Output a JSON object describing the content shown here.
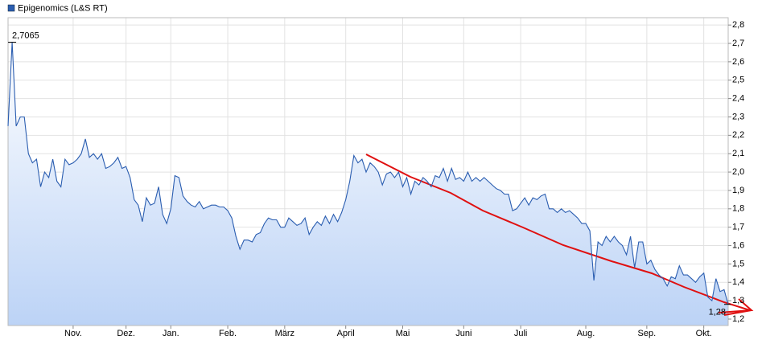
{
  "chart_data": {
    "type": "line",
    "categories": [
      null,
      null,
      null,
      null,
      null,
      null,
      null,
      null,
      null,
      null,
      null,
      null,
      null,
      null,
      null,
      null,
      "Nov.",
      null,
      null,
      null,
      null,
      null,
      null,
      null,
      null,
      null,
      null,
      null,
      null,
      "Dez.",
      null,
      null,
      null,
      null,
      null,
      null,
      null,
      null,
      null,
      null,
      "Jan.",
      null,
      null,
      null,
      null,
      null,
      null,
      null,
      null,
      null,
      null,
      null,
      null,
      null,
      "Feb.",
      null,
      null,
      null,
      null,
      null,
      null,
      null,
      null,
      null,
      null,
      null,
      null,
      null,
      "März",
      null,
      null,
      null,
      null,
      null,
      null,
      null,
      null,
      null,
      null,
      null,
      null,
      null,
      null,
      "April",
      null,
      null,
      null,
      null,
      null,
      null,
      null,
      null,
      null,
      null,
      null,
      null,
      null,
      "Mai",
      null,
      null,
      null,
      null,
      null,
      null,
      null,
      null,
      null,
      null,
      null,
      null,
      null,
      null,
      "Juni",
      null,
      null,
      null,
      null,
      null,
      null,
      null,
      null,
      null,
      null,
      null,
      null,
      null,
      "Juli",
      null,
      null,
      null,
      null,
      null,
      null,
      null,
      null,
      null,
      null,
      null,
      null,
      null,
      null,
      null,
      "Aug.",
      null,
      null,
      null,
      null,
      null,
      null,
      null,
      null,
      null,
      null,
      null,
      null,
      null,
      null,
      "Sep.",
      null,
      null,
      null,
      null,
      null,
      null,
      null,
      null,
      null,
      null,
      null,
      null,
      null,
      "Okt.",
      null,
      null,
      null,
      null,
      null,
      null
    ],
    "series": [
      {
        "name": "Epigenomics (L&S RT)",
        "color": "#2a5db0",
        "values": [
          2.25,
          2.7065,
          2.25,
          2.3,
          2.3,
          2.1,
          2.05,
          2.07,
          1.92,
          2.0,
          1.97,
          2.07,
          1.95,
          1.92,
          2.07,
          2.04,
          2.05,
          2.07,
          2.1,
          2.18,
          2.08,
          2.1,
          2.07,
          2.1,
          2.02,
          2.03,
          2.05,
          2.08,
          2.02,
          2.03,
          1.97,
          1.85,
          1.82,
          1.73,
          1.86,
          1.82,
          1.83,
          1.92,
          1.77,
          1.72,
          1.8,
          1.98,
          1.97,
          1.87,
          1.84,
          1.82,
          1.81,
          1.84,
          1.8,
          1.81,
          1.82,
          1.82,
          1.81,
          1.81,
          1.79,
          1.75,
          1.65,
          1.58,
          1.63,
          1.63,
          1.62,
          1.66,
          1.67,
          1.72,
          1.75,
          1.74,
          1.74,
          1.7,
          1.7,
          1.75,
          1.73,
          1.71,
          1.72,
          1.75,
          1.66,
          1.7,
          1.73,
          1.71,
          1.76,
          1.72,
          1.77,
          1.73,
          1.78,
          1.85,
          1.95,
          2.09,
          2.05,
          2.07,
          2.0,
          2.05,
          2.03,
          2.0,
          1.93,
          1.99,
          2.0,
          1.97,
          2.0,
          1.92,
          1.97,
          1.88,
          1.95,
          1.93,
          1.97,
          1.95,
          1.92,
          1.98,
          1.97,
          2.02,
          1.95,
          2.02,
          1.96,
          1.97,
          1.95,
          2.0,
          1.95,
          1.97,
          1.95,
          1.97,
          1.95,
          1.93,
          1.91,
          1.9,
          1.88,
          1.88,
          1.79,
          1.8,
          1.83,
          1.86,
          1.82,
          1.86,
          1.85,
          1.87,
          1.88,
          1.8,
          1.8,
          1.78,
          1.8,
          1.78,
          1.79,
          1.77,
          1.75,
          1.72,
          1.72,
          1.68,
          1.41,
          1.62,
          1.6,
          1.65,
          1.62,
          1.65,
          1.62,
          1.6,
          1.55,
          1.65,
          1.48,
          1.62,
          1.62,
          1.5,
          1.52,
          1.47,
          1.44,
          1.42,
          1.38,
          1.43,
          1.42,
          1.49,
          1.44,
          1.44,
          1.42,
          1.4,
          1.43,
          1.45,
          1.32,
          1.3,
          1.42,
          1.35,
          1.36,
          1.28
        ]
      }
    ],
    "annotations": [
      "2,7065",
      "1,28"
    ],
    "ylim": [
      1.165,
      2.84
    ],
    "yticks": [
      {
        "value": 1.2,
        "label": "1,2"
      },
      {
        "value": 1.3,
        "label": "1,3"
      },
      {
        "value": 1.4,
        "label": "1,4"
      },
      {
        "value": 1.5,
        "label": "1,5"
      },
      {
        "value": 1.6,
        "label": "1,6"
      },
      {
        "value": 1.7,
        "label": "1,7"
      },
      {
        "value": 1.8,
        "label": "1,8"
      },
      {
        "value": 1.9,
        "label": "1,9"
      },
      {
        "value": 2.0,
        "label": "2,0"
      },
      {
        "value": 2.1,
        "label": "2,1"
      },
      {
        "value": 2.2,
        "label": "2,2"
      },
      {
        "value": 2.3,
        "label": "2,3"
      },
      {
        "value": 2.4,
        "label": "2,4"
      },
      {
        "value": 2.5,
        "label": "2,5"
      },
      {
        "value": 2.6,
        "label": "2,6"
      },
      {
        "value": 2.7,
        "label": "2,7"
      },
      {
        "value": 2.8,
        "label": "2,8"
      }
    ],
    "grid": true
  }
}
